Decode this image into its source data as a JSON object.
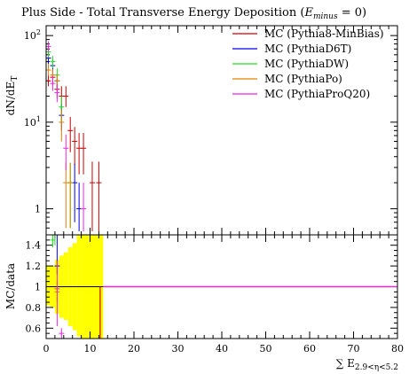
{
  "chart_data": [
    {
      "type": "scatter",
      "title": "Plus Side - Total Transverse Energy Deposition (E_minus = 0)",
      "title_main": "Plus Side - Total Transverse Energy Deposition (",
      "title_var": "E",
      "title_sub": "minus",
      "title_tail": " = 0)",
      "ylabel": "dN/dE_T",
      "ylabel_main": "dN/dE",
      "ylabel_sub": "T",
      "yscale": "log",
      "ylim": [
        0.5,
        130
      ],
      "xlim": [
        0,
        80
      ],
      "grid": false,
      "legend_position": "top-right",
      "ytick_labels": [
        {
          "v": 1,
          "base": "1",
          "exp": ""
        },
        {
          "v": 10,
          "base": "10",
          "exp": "1"
        },
        {
          "v": 100,
          "base": "10",
          "exp": "2"
        }
      ],
      "series": [
        {
          "name": "MC (Pythia8-MinBias)",
          "color": "#cc0000",
          "points": [
            {
              "x": 0.5,
              "y": 30,
              "yerr": [
                26,
                35
              ]
            },
            {
              "x": 1.5,
              "y": 33,
              "yerr": [
                27,
                40
              ]
            },
            {
              "x": 2.5,
              "y": 24,
              "yerr": [
                19,
                30
              ]
            },
            {
              "x": 3.5,
              "y": 20,
              "yerr": [
                14,
                26
              ]
            },
            {
              "x": 4.5,
              "y": 20,
              "yerr": [
                15,
                26
              ]
            },
            {
              "x": 5.5,
              "y": 8,
              "yerr": [
                4.5,
                11.5
              ]
            },
            {
              "x": 6.5,
              "y": 6,
              "yerr": [
                3.2,
                8.8
              ]
            },
            {
              "x": 7.5,
              "y": 5,
              "yerr": [
                2.5,
                7.5
              ]
            },
            {
              "x": 8.5,
              "y": 5,
              "yerr": [
                2.5,
                7.5
              ]
            },
            {
              "x": 10.5,
              "y": 2,
              "yerr": [
                0.55,
                3.5
              ]
            },
            {
              "x": 12,
              "y": 2,
              "yerr": [
                0.55,
                3.5
              ]
            }
          ]
        },
        {
          "name": "MC (PythiaD6T)",
          "color": "#0000ee",
          "points": [
            {
              "x": 0.5,
              "y": 55,
              "yerr": [
                47,
                64
              ]
            },
            {
              "x": 1.5,
              "y": 45,
              "yerr": [
                38,
                52
              ]
            },
            {
              "x": 2.5,
              "y": 30,
              "yerr": [
                24,
                36
              ]
            },
            {
              "x": 3.5,
              "y": 12,
              "yerr": [
                8,
                16
              ]
            },
            {
              "x": 6.5,
              "y": 2,
              "yerr": [
                0.7,
                3.3
              ]
            },
            {
              "x": 7.5,
              "y": 1,
              "yerr": [
                0.55,
                2
              ]
            }
          ]
        },
        {
          "name": "MC (PythiaDW)",
          "color": "#22dd22",
          "points": [
            {
              "x": 0.5,
              "y": 65,
              "yerr": [
                56,
                75
              ]
            },
            {
              "x": 1.5,
              "y": 50,
              "yerr": [
                42,
                58
              ]
            },
            {
              "x": 2.5,
              "y": 35,
              "yerr": [
                28,
                42
              ]
            },
            {
              "x": 3.5,
              "y": 15,
              "yerr": [
                10,
                20
              ]
            },
            {
              "x": 5.5,
              "y": 2,
              "yerr": [
                0.6,
                3.4
              ]
            }
          ]
        },
        {
          "name": "MC (PythiaPo)",
          "color": "#e08000",
          "points": [
            {
              "x": 0.5,
              "y": 40,
              "yerr": [
                34,
                47
              ]
            },
            {
              "x": 1.5,
              "y": 35,
              "yerr": [
                29,
                41
              ]
            },
            {
              "x": 2.5,
              "y": 30,
              "yerr": [
                24,
                36
              ]
            },
            {
              "x": 3.5,
              "y": 10,
              "yerr": [
                6,
                14
              ]
            },
            {
              "x": 4.5,
              "y": 2,
              "yerr": [
                0.6,
                3.4
              ]
            },
            {
              "x": 5.5,
              "y": 2,
              "yerr": [
                0.6,
                3.4
              ]
            }
          ]
        },
        {
          "name": "MC (PythiaProQ20)",
          "color": "#ee22ee",
          "points": [
            {
              "x": 0.5,
              "y": 75,
              "yerr": [
                65,
                86
              ]
            },
            {
              "x": 1.5,
              "y": 28,
              "yerr": [
                23,
                34
              ]
            },
            {
              "x": 2.5,
              "y": 22,
              "yerr": [
                17,
                27
              ]
            },
            {
              "x": 4.5,
              "y": 5,
              "yerr": [
                2.8,
                7.2
              ]
            },
            {
              "x": 8.5,
              "y": 1,
              "yerr": [
                0.55,
                2
              ]
            }
          ]
        }
      ]
    },
    {
      "type": "line",
      "ylabel": "MC/data",
      "xlabel": "∑ E_2.9<η<5.2",
      "xlabel_sum": "∑ E",
      "xlabel_sub": "2.9<η<5.2",
      "xlim": [
        0,
        80
      ],
      "ylim": [
        0.5,
        1.5
      ],
      "xticks": [
        0,
        10,
        20,
        30,
        40,
        50,
        60,
        70,
        80
      ],
      "yticks": [
        0.6,
        0.8,
        1,
        1.2,
        1.4
      ],
      "band_color": "#ffff00",
      "band": [
        {
          "x0": 0,
          "x1": 1,
          "lo": 0.82,
          "hi": 1.2
        },
        {
          "x0": 1,
          "x1": 2,
          "lo": 0.8,
          "hi": 1.2
        },
        {
          "x0": 2,
          "x1": 3,
          "lo": 0.74,
          "hi": 1.26
        },
        {
          "x0": 3,
          "x1": 4,
          "lo": 0.7,
          "hi": 1.3
        },
        {
          "x0": 4,
          "x1": 5,
          "lo": 0.68,
          "hi": 1.33
        },
        {
          "x0": 5,
          "x1": 6,
          "lo": 0.62,
          "hi": 1.38
        },
        {
          "x0": 6,
          "x1": 7,
          "lo": 0.58,
          "hi": 1.42
        },
        {
          "x0": 7,
          "x1": 8,
          "lo": 0.52,
          "hi": 1.5
        },
        {
          "x0": 8,
          "x1": 13,
          "lo": 0.5,
          "hi": 1.5
        }
      ],
      "series": [
        {
          "name": "MC (Pythia8-MinBias)",
          "color": "#cc0000",
          "segments": [
            {
              "x0": 13,
              "x1": 80,
              "y": 1
            }
          ],
          "points": [
            {
              "x": 12.3,
              "y": 0.5,
              "yerr": [
                0.5,
                1.0
              ]
            }
          ]
        },
        {
          "name": "MC (PythiaD6T)",
          "color": "#0000ee",
          "segments": [],
          "points": [
            {
              "x": 2.5,
              "y": 1.2,
              "yerr": [
                1.12,
                1.5
              ]
            }
          ]
        },
        {
          "name": "MC (PythiaDW)",
          "color": "#22dd22",
          "segments": [],
          "points": [
            {
              "x": 1.5,
              "y": 1.45,
              "yerr": [
                1.38,
                1.5
              ]
            },
            {
              "x": 2.0,
              "y": 1.5,
              "yerr": [
                1.4,
                1.5
              ]
            }
          ]
        },
        {
          "name": "MC (PythiaPo)",
          "color": "#e08000",
          "segments": [],
          "points": [
            {
              "x": 2.5,
              "y": 0.95,
              "yerr": [
                0.85,
                1.05
              ]
            }
          ]
        },
        {
          "name": "MC (PythiaProQ20)",
          "color": "#ee22ee",
          "segments": [
            {
              "x0": 13,
              "x1": 80,
              "y": 1
            }
          ],
          "points": [
            {
              "x": 2.5,
              "y": 0.98,
              "yerr": [
                0.62,
                1.25
              ]
            },
            {
              "x": 3.5,
              "y": 0.55,
              "yerr": [
                0.5,
                0.6
              ]
            }
          ]
        }
      ]
    }
  ]
}
